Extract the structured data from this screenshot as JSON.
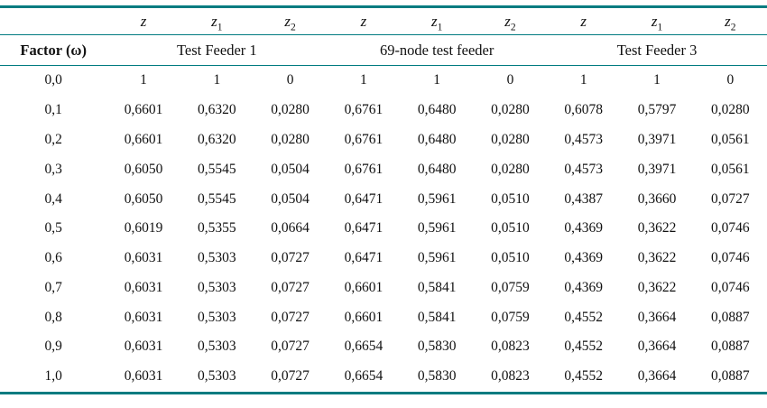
{
  "colors": {
    "rule": "#007b80",
    "text": "#111111"
  },
  "table": {
    "column_headers": [
      {
        "base": "",
        "sub": ""
      },
      {
        "base": "z",
        "sub": ""
      },
      {
        "base": "z",
        "sub": "1"
      },
      {
        "base": "z",
        "sub": "2"
      },
      {
        "base": "z",
        "sub": ""
      },
      {
        "base": "z",
        "sub": "1"
      },
      {
        "base": "z",
        "sub": "2"
      },
      {
        "base": "z",
        "sub": ""
      },
      {
        "base": "z",
        "sub": "1"
      },
      {
        "base": "z",
        "sub": "2"
      }
    ],
    "factor_label": "Factor (ω)",
    "groups": [
      "Test Feeder 1",
      "69-node test feeder",
      "Test Feeder 3"
    ],
    "rows": [
      {
        "factor": "0,0",
        "values": [
          "1",
          "1",
          "0",
          "1",
          "1",
          "0",
          "1",
          "1",
          "0"
        ]
      },
      {
        "factor": "0,1",
        "values": [
          "0,6601",
          "0,6320",
          "0,0280",
          "0,6761",
          "0,6480",
          "0,0280",
          "0,6078",
          "0,5797",
          "0,0280"
        ]
      },
      {
        "factor": "0,2",
        "values": [
          "0,6601",
          "0,6320",
          "0,0280",
          "0,6761",
          "0,6480",
          "0,0280",
          "0,4573",
          "0,3971",
          "0,0561"
        ]
      },
      {
        "factor": "0,3",
        "values": [
          "0,6050",
          "0,5545",
          "0,0504",
          "0,6761",
          "0,6480",
          "0,0280",
          "0,4573",
          "0,3971",
          "0,0561"
        ]
      },
      {
        "factor": "0,4",
        "values": [
          "0,6050",
          "0,5545",
          "0,0504",
          "0,6471",
          "0,5961",
          "0,0510",
          "0,4387",
          "0,3660",
          "0,0727"
        ]
      },
      {
        "factor": "0,5",
        "values": [
          "0,6019",
          "0,5355",
          "0,0664",
          "0,6471",
          "0,5961",
          "0,0510",
          "0,4369",
          "0,3622",
          "0,0746"
        ]
      },
      {
        "factor": "0,6",
        "values": [
          "0,6031",
          "0,5303",
          "0,0727",
          "0,6471",
          "0,5961",
          "0,0510",
          "0,4369",
          "0,3622",
          "0,0746"
        ]
      },
      {
        "factor": "0,7",
        "values": [
          "0,6031",
          "0,5303",
          "0,0727",
          "0,6601",
          "0,5841",
          "0,0759",
          "0,4369",
          "0,3622",
          "0,0746"
        ]
      },
      {
        "factor": "0,8",
        "values": [
          "0,6031",
          "0,5303",
          "0,0727",
          "0,6601",
          "0,5841",
          "0,0759",
          "0,4552",
          "0,3664",
          "0,0887"
        ]
      },
      {
        "factor": "0,9",
        "values": [
          "0,6031",
          "0,5303",
          "0,0727",
          "0,6654",
          "0,5830",
          "0,0823",
          "0,4552",
          "0,3664",
          "0,0887"
        ]
      },
      {
        "factor": "1,0",
        "values": [
          "0,6031",
          "0,5303",
          "0,0727",
          "0,6654",
          "0,5830",
          "0,0823",
          "0,4552",
          "0,3664",
          "0,0887"
        ]
      }
    ]
  },
  "chart_data": {
    "type": "table",
    "title": "",
    "factor_label": "Factor (ω)",
    "groups": [
      "Test Feeder 1",
      "69-node test feeder",
      "Test Feeder 3"
    ],
    "columns_per_group": [
      "z",
      "z1",
      "z2"
    ],
    "factors": [
      "0,0",
      "0,1",
      "0,2",
      "0,3",
      "0,4",
      "0,5",
      "0,6",
      "0,7",
      "0,8",
      "0,9",
      "1,0"
    ]
  }
}
